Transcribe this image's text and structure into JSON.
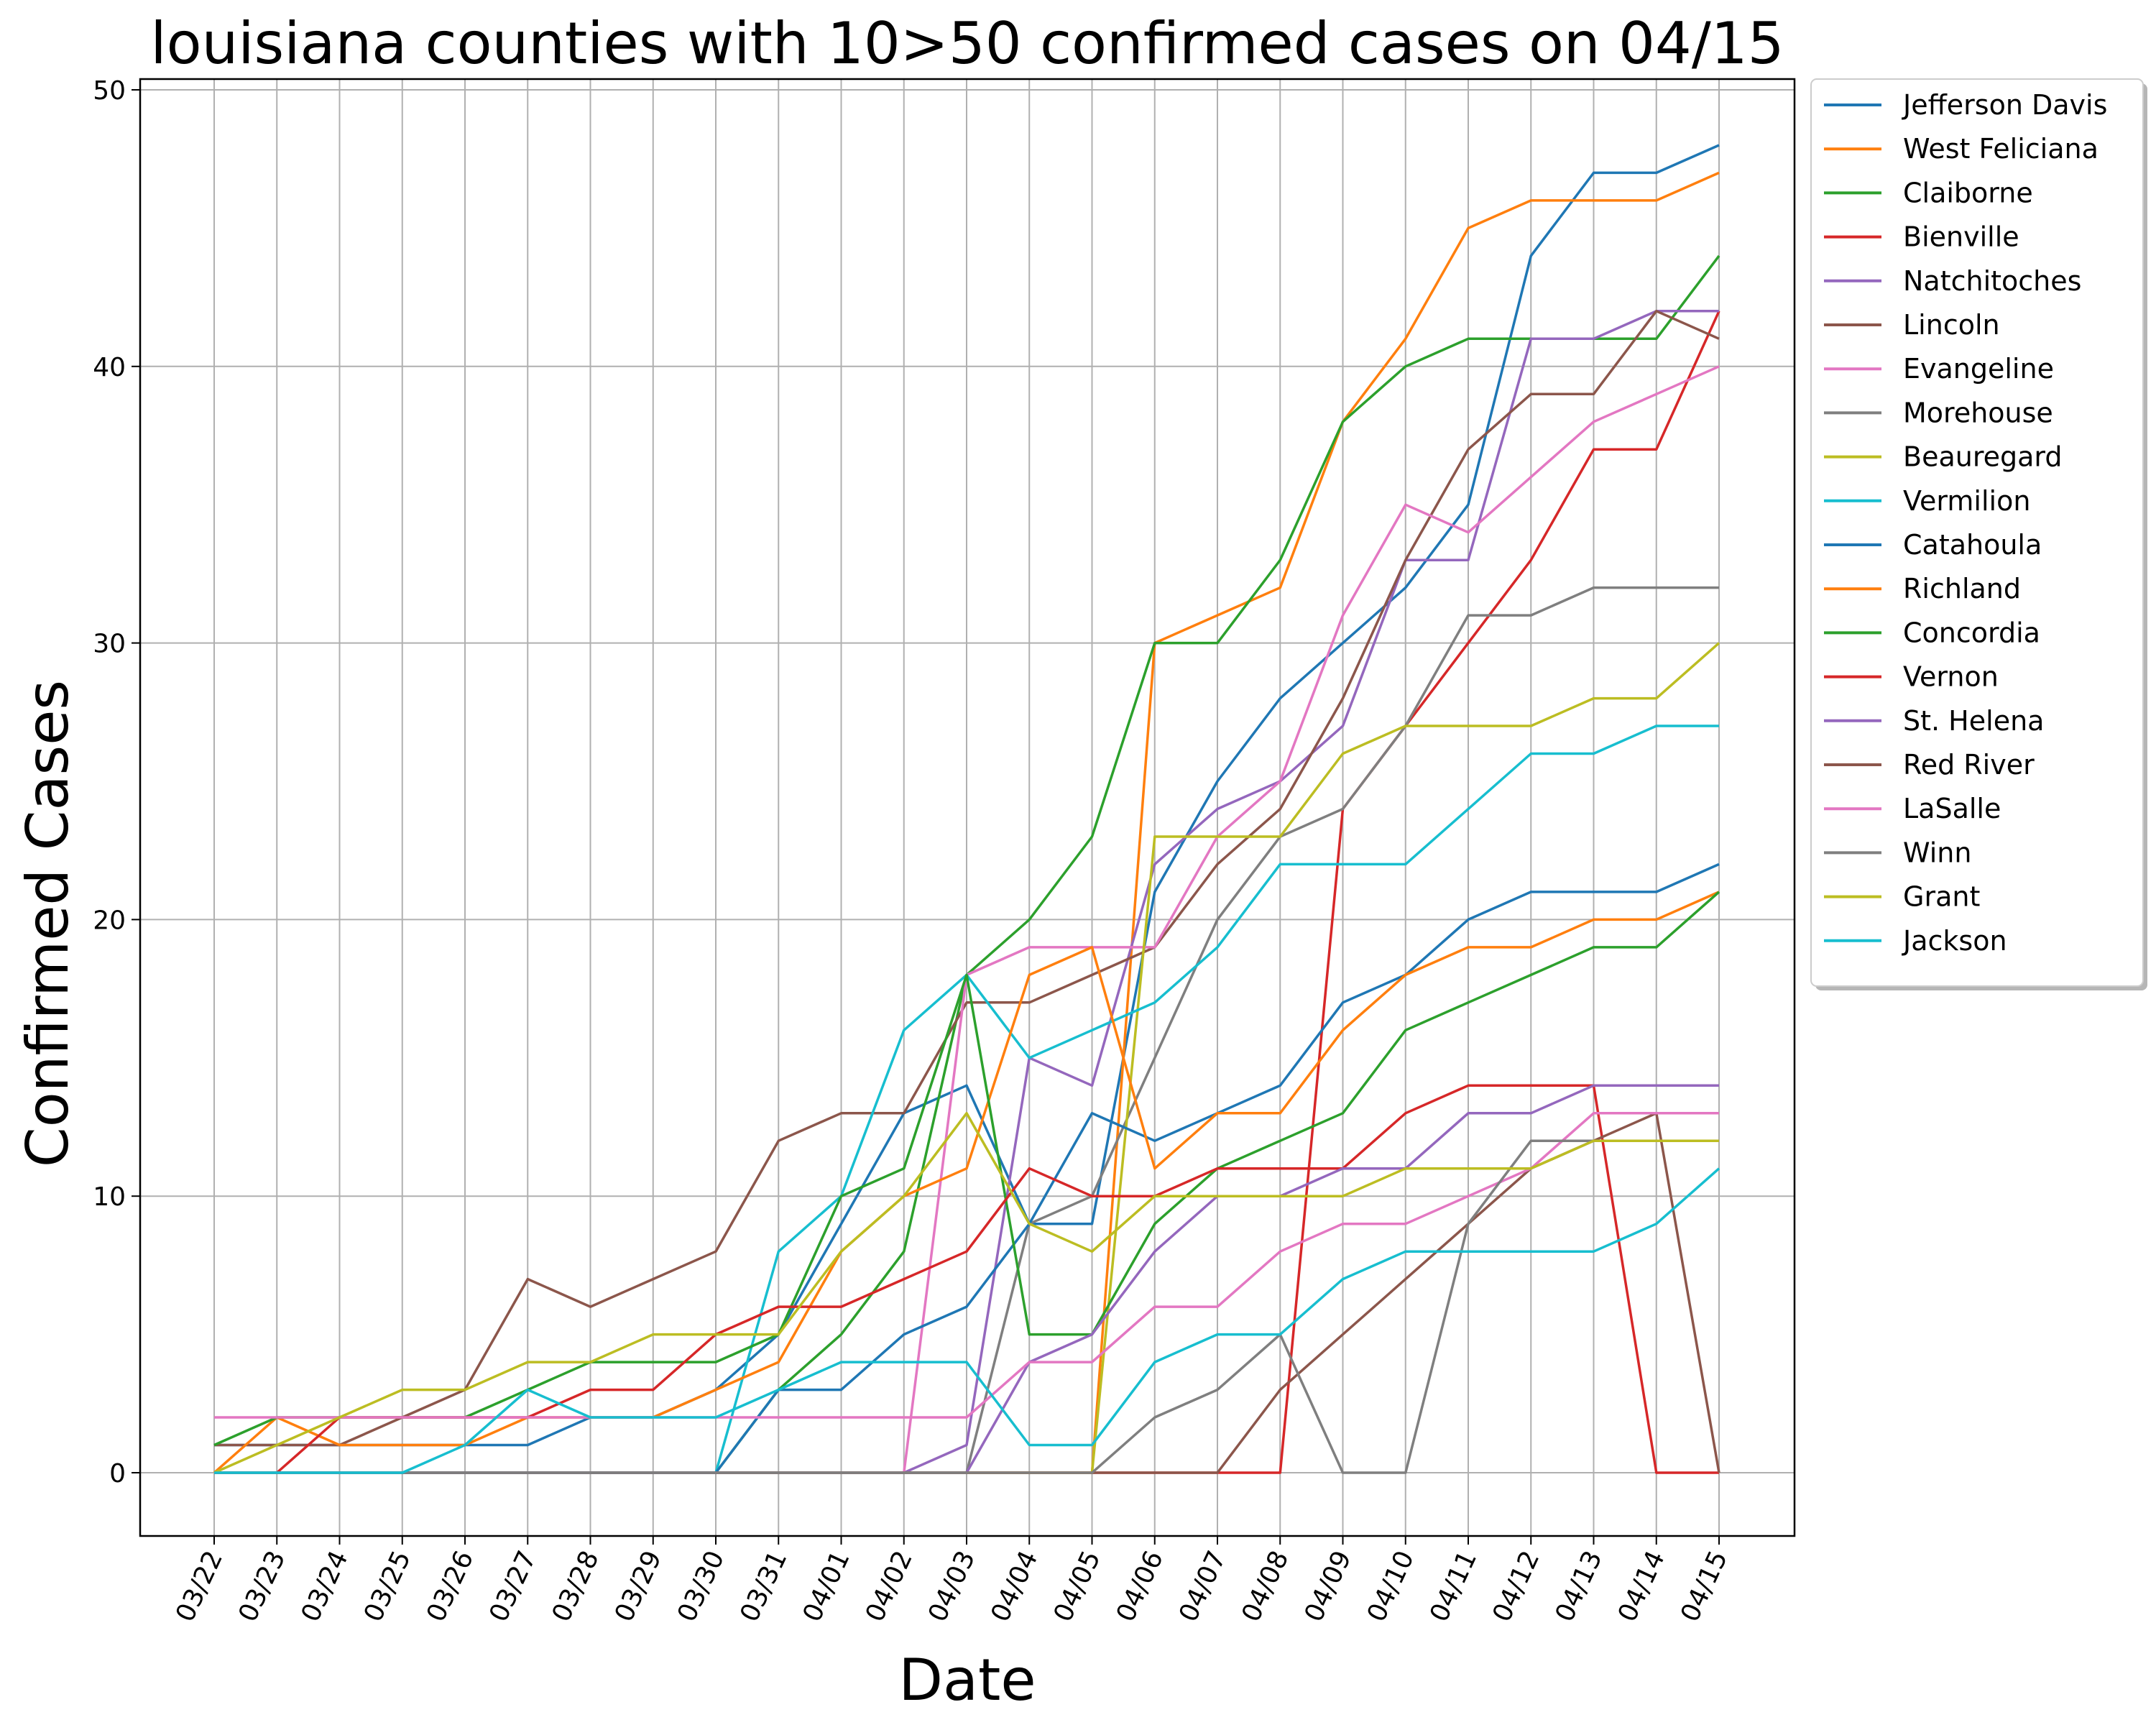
{
  "chart_data": {
    "type": "line",
    "title": "louisiana counties with 10>50 confirmed cases on 04/15",
    "xlabel": "Date",
    "ylabel": "Confirmed Cases",
    "ylim": [
      -2.4,
      52.4
    ],
    "yticks": [
      0,
      10,
      20,
      30,
      40,
      50
    ],
    "grid": true,
    "legend_position": "outside-right-top",
    "categories": [
      "03/22",
      "03/23",
      "03/24",
      "03/25",
      "03/26",
      "03/27",
      "03/28",
      "03/29",
      "03/30",
      "03/31",
      "04/01",
      "04/02",
      "04/03",
      "04/04",
      "04/05",
      "04/06",
      "04/07",
      "04/08",
      "04/09",
      "04/10",
      "04/11",
      "04/12",
      "04/13",
      "04/14",
      "04/15"
    ],
    "series": [
      {
        "name": "Jefferson Davis",
        "color": "#1f77b4",
        "values": [
          1,
          1,
          1,
          1,
          1,
          1,
          2,
          2,
          3,
          5,
          9,
          13,
          14,
          9,
          9,
          21,
          25,
          28,
          30,
          32,
          35,
          44,
          47,
          47,
          48
        ]
      },
      {
        "name": "West Feliciana",
        "color": "#ff7f0e",
        "values": [
          0,
          0,
          0,
          0,
          0,
          0,
          0,
          0,
          0,
          0,
          0,
          0,
          0,
          0,
          0,
          30,
          31,
          32,
          38,
          41,
          45,
          46,
          46,
          46,
          47
        ]
      },
      {
        "name": "Claiborne",
        "color": "#2ca02c",
        "values": [
          0,
          0,
          0,
          0,
          0,
          0,
          0,
          0,
          0,
          3,
          5,
          8,
          18,
          20,
          23,
          30,
          30,
          33,
          38,
          40,
          41,
          41,
          41,
          41,
          44
        ]
      },
      {
        "name": "Bienville",
        "color": "#d62728",
        "values": [
          0,
          0,
          0,
          0,
          0,
          0,
          0,
          0,
          0,
          0,
          0,
          0,
          0,
          0,
          0,
          0,
          0,
          0,
          24,
          27,
          30,
          33,
          37,
          37,
          42
        ]
      },
      {
        "name": "Natchitoches",
        "color": "#9467bd",
        "values": [
          0,
          0,
          0,
          0,
          0,
          0,
          0,
          0,
          0,
          0,
          0,
          0,
          1,
          15,
          14,
          22,
          24,
          25,
          27,
          33,
          33,
          41,
          41,
          42,
          42
        ]
      },
      {
        "name": "Lincoln",
        "color": "#8c564b",
        "values": [
          1,
          1,
          1,
          2,
          3,
          7,
          6,
          7,
          8,
          12,
          13,
          13,
          17,
          17,
          18,
          19,
          22,
          24,
          28,
          33,
          37,
          39,
          39,
          42,
          41
        ]
      },
      {
        "name": "Evangeline",
        "color": "#e377c2",
        "values": [
          0,
          0,
          0,
          0,
          0,
          0,
          0,
          0,
          0,
          0,
          0,
          0,
          18,
          19,
          19,
          19,
          23,
          25,
          31,
          35,
          34,
          36,
          38,
          39,
          40
        ]
      },
      {
        "name": "Morehouse",
        "color": "#7f7f7f",
        "values": [
          0,
          0,
          0,
          0,
          0,
          0,
          0,
          0,
          0,
          0,
          0,
          0,
          0,
          9,
          10,
          15,
          20,
          23,
          24,
          27,
          31,
          31,
          32,
          32,
          32
        ]
      },
      {
        "name": "Beauregard",
        "color": "#bcbd22",
        "values": [
          0,
          0,
          0,
          0,
          0,
          0,
          0,
          0,
          0,
          0,
          0,
          0,
          0,
          0,
          0,
          23,
          23,
          23,
          26,
          27,
          27,
          27,
          28,
          28,
          30
        ]
      },
      {
        "name": "Vermilion",
        "color": "#17becf",
        "values": [
          0,
          0,
          0,
          0,
          0,
          0,
          0,
          0,
          0,
          8,
          10,
          16,
          18,
          15,
          16,
          17,
          19,
          22,
          22,
          22,
          24,
          26,
          26,
          27,
          27
        ]
      },
      {
        "name": "Catahoula",
        "color": "#1f77b4",
        "values": [
          0,
          0,
          0,
          0,
          0,
          0,
          0,
          0,
          0,
          3,
          3,
          5,
          6,
          9,
          13,
          12,
          13,
          14,
          17,
          18,
          20,
          21,
          21,
          21,
          22
        ]
      },
      {
        "name": "Richland",
        "color": "#ff7f0e",
        "values": [
          0,
          2,
          1,
          1,
          1,
          2,
          2,
          2,
          3,
          4,
          8,
          10,
          11,
          18,
          19,
          11,
          13,
          13,
          16,
          18,
          19,
          19,
          20,
          20,
          21
        ]
      },
      {
        "name": "Concordia",
        "color": "#2ca02c",
        "values": [
          1,
          2,
          2,
          2,
          2,
          3,
          4,
          4,
          4,
          5,
          10,
          11,
          18,
          5,
          5,
          9,
          11,
          12,
          13,
          16,
          17,
          18,
          19,
          19,
          21
        ]
      },
      {
        "name": "Vernon",
        "color": "#d62728",
        "values": [
          0,
          0,
          2,
          2,
          2,
          2,
          3,
          3,
          5,
          6,
          6,
          7,
          8,
          11,
          10,
          10,
          11,
          11,
          11,
          13,
          14,
          14,
          14,
          0,
          0
        ]
      },
      {
        "name": "St. Helena",
        "color": "#9467bd",
        "values": [
          0,
          0,
          0,
          0,
          0,
          0,
          0,
          0,
          0,
          0,
          0,
          0,
          0,
          4,
          5,
          8,
          10,
          10,
          11,
          11,
          13,
          13,
          14,
          14,
          14
        ]
      },
      {
        "name": "Red River",
        "color": "#8c564b",
        "values": [
          0,
          0,
          0,
          0,
          0,
          0,
          0,
          0,
          0,
          0,
          0,
          0,
          0,
          0,
          0,
          0,
          0,
          3,
          5,
          7,
          9,
          11,
          12,
          13,
          0
        ]
      },
      {
        "name": "LaSalle",
        "color": "#e377c2",
        "values": [
          2,
          2,
          2,
          2,
          2,
          2,
          2,
          2,
          2,
          2,
          2,
          2,
          2,
          4,
          4,
          6,
          6,
          8,
          9,
          9,
          10,
          11,
          13,
          13,
          13
        ]
      },
      {
        "name": "Winn",
        "color": "#7f7f7f",
        "values": [
          0,
          0,
          0,
          0,
          0,
          0,
          0,
          0,
          0,
          0,
          0,
          0,
          0,
          0,
          0,
          2,
          3,
          5,
          0,
          0,
          9,
          12,
          12,
          12,
          12
        ]
      },
      {
        "name": "Grant",
        "color": "#bcbd22",
        "values": [
          0,
          1,
          2,
          3,
          3,
          4,
          4,
          5,
          5,
          5,
          8,
          10,
          13,
          9,
          8,
          10,
          10,
          10,
          10,
          11,
          11,
          11,
          12,
          12,
          12
        ]
      },
      {
        "name": "Jackson",
        "color": "#17becf",
        "values": [
          0,
          0,
          0,
          0,
          1,
          3,
          2,
          2,
          2,
          3,
          4,
          4,
          4,
          1,
          1,
          4,
          5,
          5,
          7,
          8,
          8,
          8,
          8,
          9,
          11
        ]
      }
    ]
  }
}
